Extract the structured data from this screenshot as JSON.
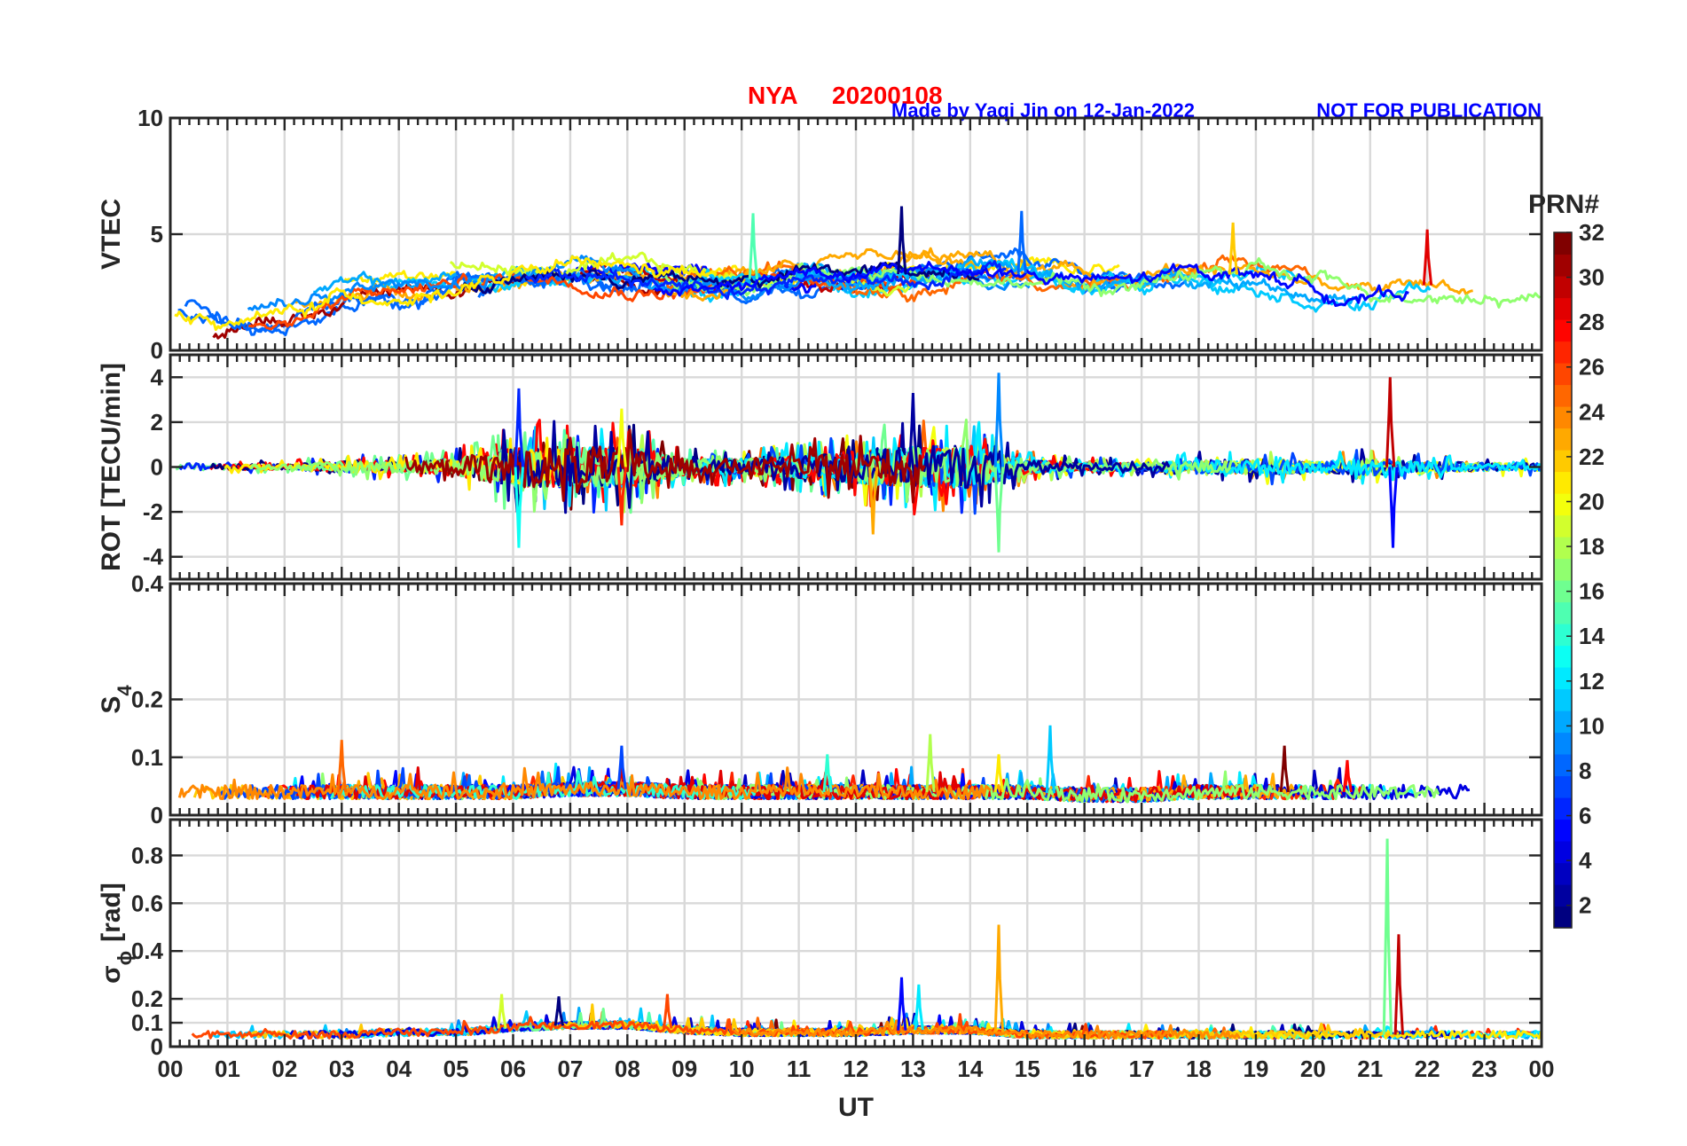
{
  "title": {
    "station": "NYA",
    "date": "20200108",
    "credit": "Made by Yaqi Jin on 12-Jan-2022",
    "notice": "NOT FOR PUBLICATION"
  },
  "colors": {
    "title": "#ff0000",
    "note": "#0000ff",
    "grid": "#d9d9d9",
    "axis": "#262626"
  },
  "chart_data": [
    {
      "type": "line",
      "panel": "VTEC",
      "ylabel": "VTEC",
      "ylim": [
        0,
        10
      ],
      "yticks": [
        0,
        5,
        10
      ],
      "ytick_labels": [
        "0",
        "5",
        "10"
      ],
      "xlim": [
        0,
        24
      ],
      "grid": true,
      "series_color_by": "PRN",
      "baseline_profile": {
        "ut_hours": [
          0,
          1,
          2,
          3,
          4,
          5,
          6,
          7,
          8,
          9,
          10,
          11,
          12,
          13,
          14,
          15,
          16,
          17,
          18,
          19,
          20,
          21,
          22,
          23,
          24
        ],
        "values": [
          1.6,
          1.2,
          1.4,
          2.2,
          2.5,
          2.9,
          3.1,
          3.3,
          3.2,
          3.0,
          3.0,
          3.3,
          3.2,
          3.3,
          3.5,
          3.3,
          2.9,
          2.8,
          3.2,
          3.3,
          2.8,
          2.3,
          2.8,
          2.6,
          2.6
        ]
      },
      "peaks": [
        {
          "ut": 12.8,
          "value": 6.2
        },
        {
          "ut": 14.9,
          "value": 6.0
        },
        {
          "ut": 10.2,
          "value": 5.9
        },
        {
          "ut": 18.6,
          "value": 5.5
        },
        {
          "ut": 22.0,
          "value": 5.2
        }
      ]
    },
    {
      "type": "line",
      "panel": "ROT",
      "ylabel": "ROT [TECU/min]",
      "ylim": [
        -5,
        5
      ],
      "yticks": [
        -4,
        -2,
        0,
        2,
        4
      ],
      "ytick_labels": [
        "-4",
        "-2",
        "0",
        "2",
        "4"
      ],
      "xlim": [
        0,
        24
      ],
      "grid": true,
      "activity_envelope": {
        "ut_hours": [
          0,
          1,
          2,
          3,
          4,
          5,
          6,
          7,
          8,
          9,
          10,
          11,
          12,
          13,
          14,
          15,
          16,
          17,
          18,
          19,
          20,
          21,
          22,
          23,
          24
        ],
        "amplitude": [
          0.3,
          0.2,
          0.2,
          0.4,
          0.4,
          0.6,
          1.5,
          1.5,
          1.5,
          0.6,
          0.6,
          0.8,
          1.2,
          1.5,
          1.6,
          0.5,
          0.3,
          0.3,
          0.5,
          0.6,
          0.4,
          0.6,
          0.4,
          0.3,
          0.3
        ]
      },
      "spikes": [
        {
          "ut": 6.1,
          "value": 3.5
        },
        {
          "ut": 6.1,
          "value": -3.6
        },
        {
          "ut": 7.9,
          "value": 2.6
        },
        {
          "ut": 7.9,
          "value": -2.6
        },
        {
          "ut": 13.0,
          "value": 3.3
        },
        {
          "ut": 14.5,
          "value": 4.2
        },
        {
          "ut": 14.5,
          "value": -3.8
        },
        {
          "ut": 12.3,
          "value": -3.0
        },
        {
          "ut": 21.35,
          "value": 4.0
        },
        {
          "ut": 21.4,
          "value": -3.6
        }
      ]
    },
    {
      "type": "line",
      "panel": "S4",
      "ylabel": "S",
      "ylabel_subscript": "4",
      "ylim": [
        0,
        0.4
      ],
      "yticks": [
        0,
        0.1,
        0.2,
        0.4
      ],
      "ytick_labels": [
        "0",
        "0.1",
        "0.2",
        "0.4"
      ],
      "xlim": [
        0,
        24
      ],
      "grid": true,
      "baseline_profile": {
        "ut_hours": [
          0,
          1,
          2,
          3,
          4,
          5,
          6,
          7,
          8,
          9,
          10,
          11,
          12,
          13,
          14,
          15,
          16,
          17,
          18,
          19,
          20,
          21,
          22,
          23,
          24
        ],
        "values": [
          0.04,
          0.04,
          0.04,
          0.04,
          0.04,
          0.04,
          0.04,
          0.045,
          0.045,
          0.04,
          0.04,
          0.04,
          0.04,
          0.04,
          0.04,
          0.04,
          0.035,
          0.035,
          0.04,
          0.04,
          0.04,
          0.04,
          0.04,
          0.04,
          0.04
        ]
      },
      "peaks": [
        {
          "ut": 15.4,
          "value": 0.155
        },
        {
          "ut": 13.3,
          "value": 0.14
        },
        {
          "ut": 3.0,
          "value": 0.13
        },
        {
          "ut": 19.5,
          "value": 0.12
        },
        {
          "ut": 7.9,
          "value": 0.12
        },
        {
          "ut": 11.5,
          "value": 0.105
        },
        {
          "ut": 14.5,
          "value": 0.105
        },
        {
          "ut": 20.6,
          "value": 0.095
        }
      ]
    },
    {
      "type": "line",
      "panel": "sigma_phi",
      "ylabel": "σ",
      "ylabel_subscript": "ϕ",
      "ylabel_unit": "[rad]",
      "ylim": [
        0,
        0.95
      ],
      "yticks": [
        0,
        0.1,
        0.2,
        0.4,
        0.6,
        0.8
      ],
      "ytick_labels": [
        "0",
        "0.1",
        "0.2",
        "0.4",
        "0.6",
        "0.8"
      ],
      "xlim": [
        0,
        24
      ],
      "xlabel": "UT",
      "xticks": [
        0,
        1,
        2,
        3,
        4,
        5,
        6,
        7,
        8,
        9,
        10,
        11,
        12,
        13,
        14,
        15,
        16,
        17,
        18,
        19,
        20,
        21,
        22,
        23,
        24
      ],
      "xtick_labels": [
        "00",
        "01",
        "02",
        "03",
        "04",
        "05",
        "06",
        "07",
        "08",
        "09",
        "10",
        "11",
        "12",
        "13",
        "14",
        "15",
        "16",
        "17",
        "18",
        "19",
        "20",
        "21",
        "22",
        "23",
        "00"
      ],
      "grid": true,
      "baseline_profile": {
        "ut_hours": [
          0,
          1,
          2,
          3,
          4,
          5,
          6,
          7,
          8,
          9,
          10,
          11,
          12,
          13,
          14,
          15,
          16,
          17,
          18,
          19,
          20,
          21,
          22,
          23,
          24
        ],
        "values": [
          0.05,
          0.05,
          0.05,
          0.05,
          0.06,
          0.06,
          0.08,
          0.09,
          0.09,
          0.07,
          0.06,
          0.06,
          0.06,
          0.07,
          0.07,
          0.05,
          0.05,
          0.05,
          0.05,
          0.05,
          0.05,
          0.05,
          0.05,
          0.05,
          0.05
        ]
      },
      "peaks": [
        {
          "ut": 21.3,
          "value": 0.87
        },
        {
          "ut": 14.5,
          "value": 0.51
        },
        {
          "ut": 21.5,
          "value": 0.47
        },
        {
          "ut": 12.8,
          "value": 0.29
        },
        {
          "ut": 13.1,
          "value": 0.26
        },
        {
          "ut": 5.8,
          "value": 0.22
        },
        {
          "ut": 8.7,
          "value": 0.22
        },
        {
          "ut": 6.8,
          "value": 0.21
        }
      ]
    }
  ],
  "colorbar": {
    "title": "PRN#",
    "min": 1,
    "max": 32,
    "ticks": [
      2,
      4,
      6,
      8,
      10,
      12,
      14,
      16,
      18,
      20,
      22,
      24,
      26,
      28,
      30,
      32
    ],
    "tick_labels": [
      "2",
      "4",
      "6",
      "8",
      "10",
      "12",
      "14",
      "16",
      "18",
      "20",
      "22",
      "24",
      "26",
      "28",
      "30",
      "32"
    ],
    "colormap": "jet"
  }
}
